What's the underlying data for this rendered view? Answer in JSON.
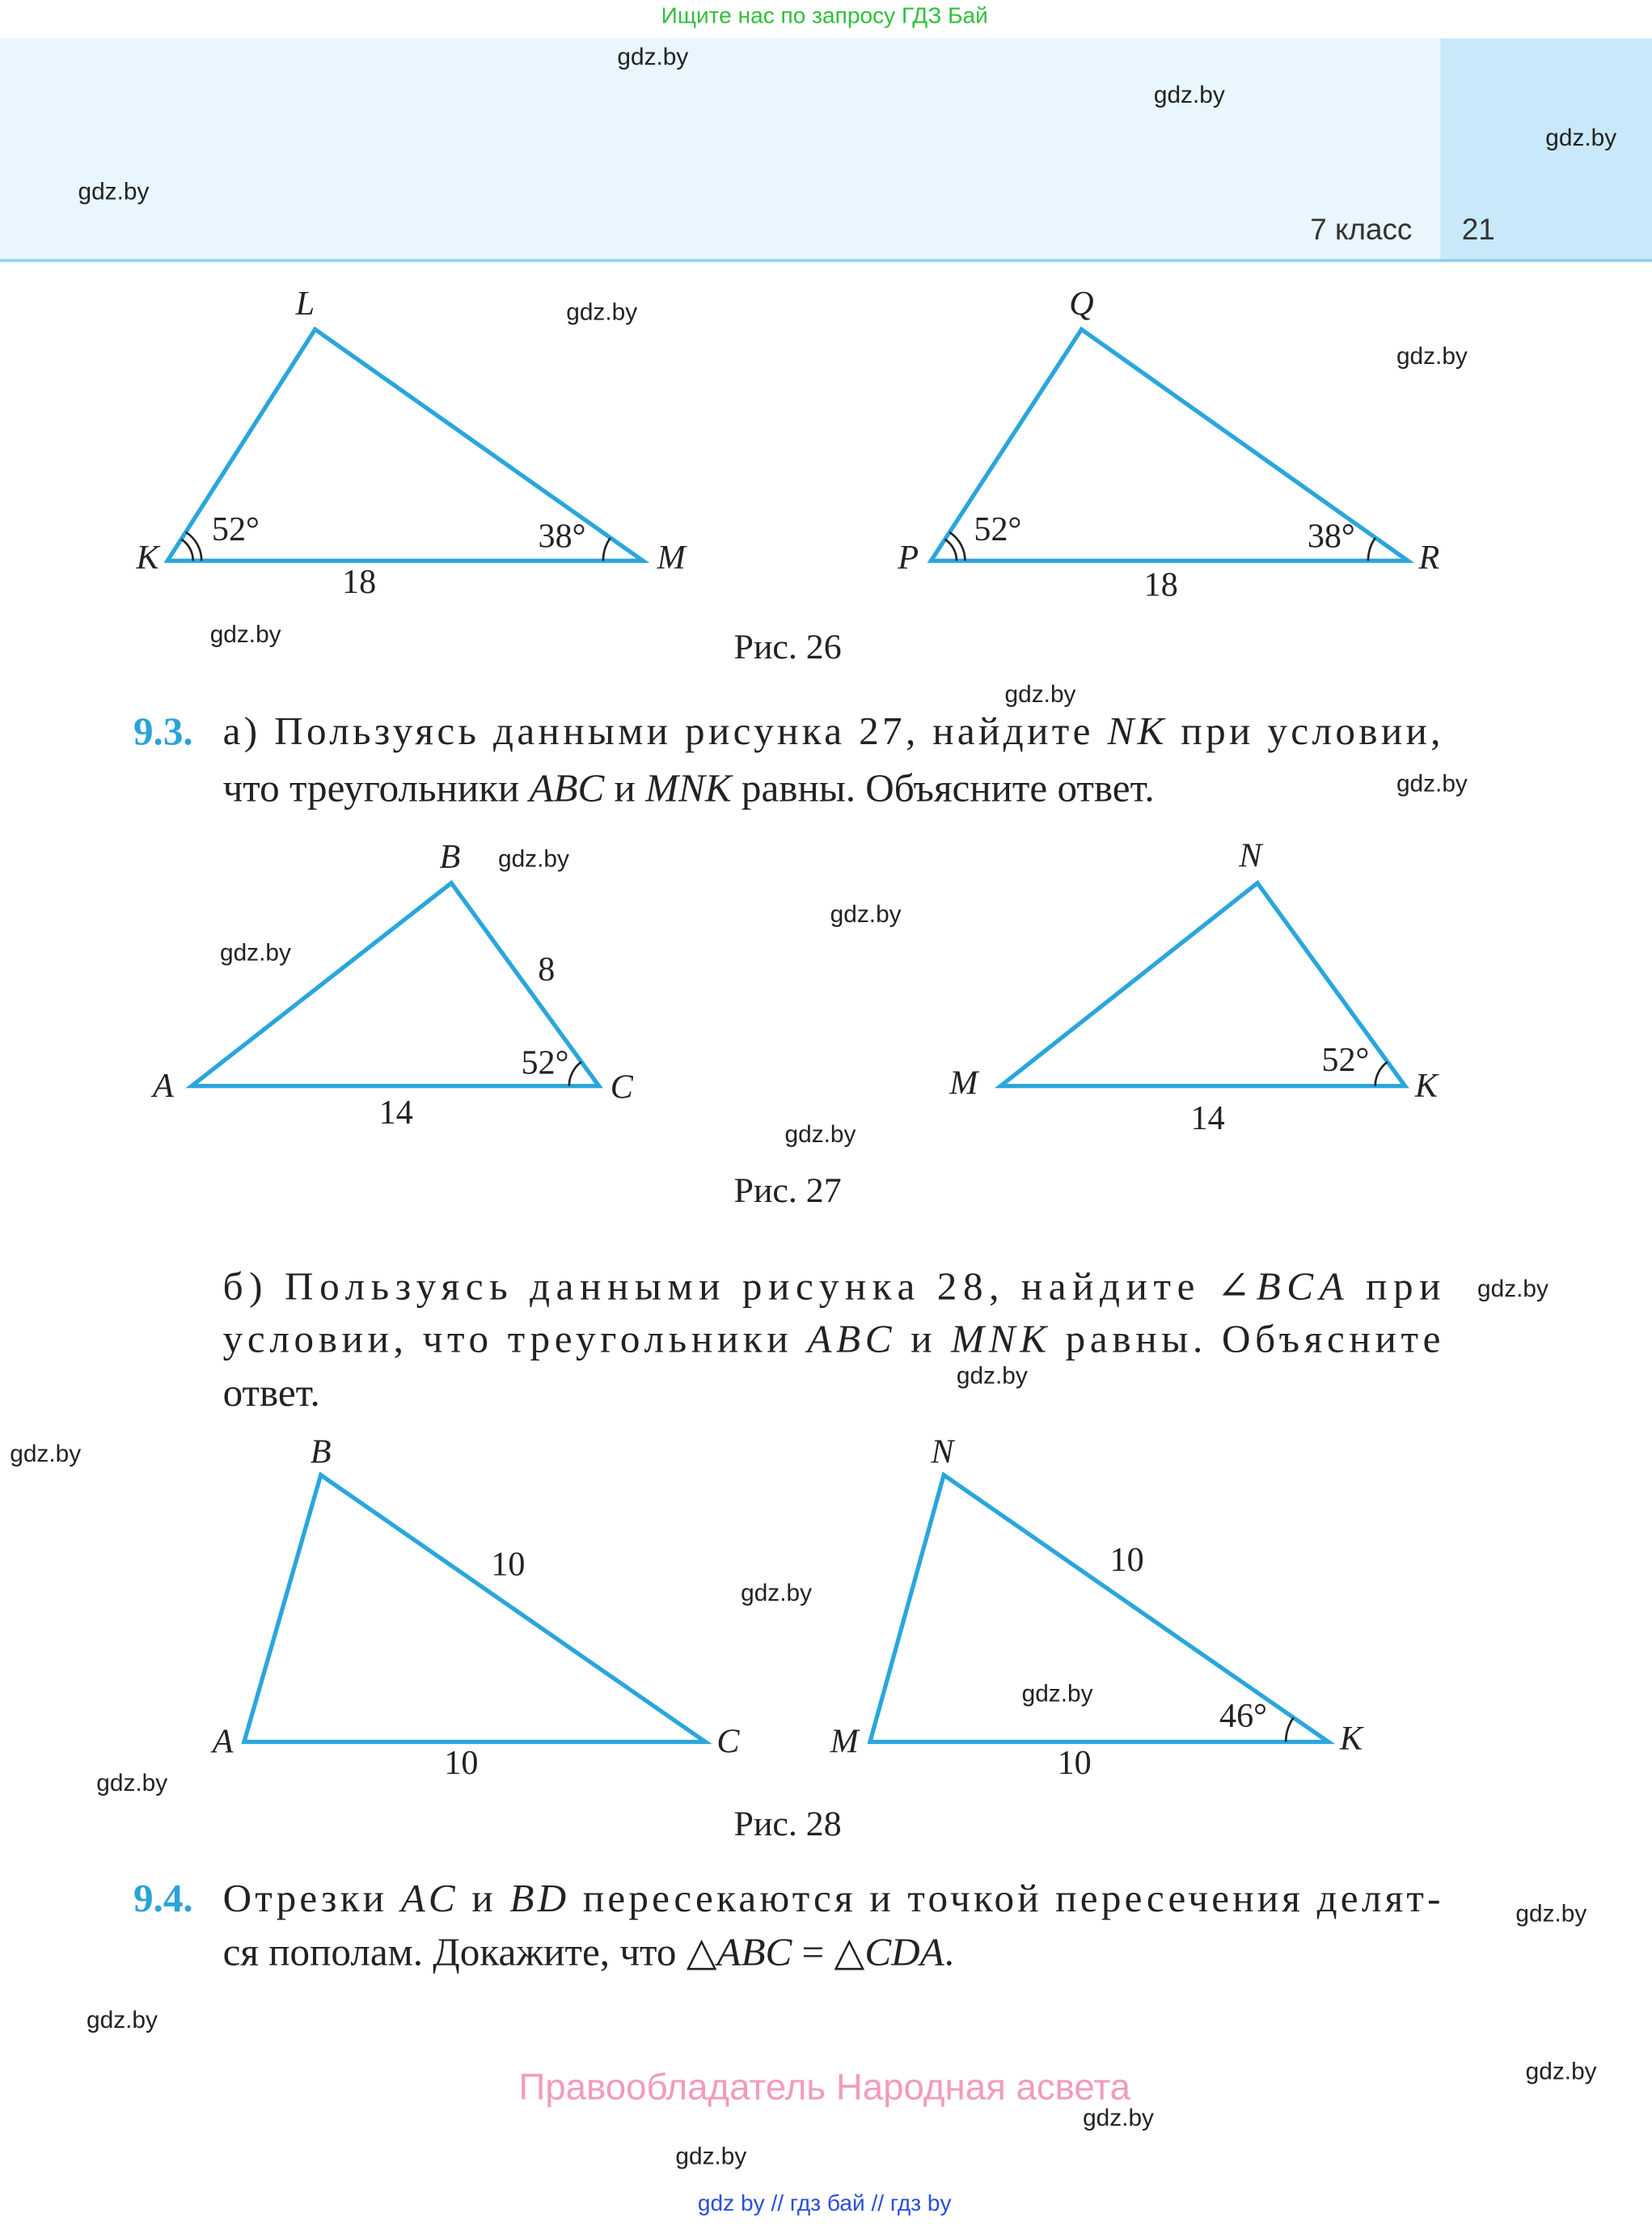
{
  "top_banner": "Ищите нас по запросу ГДЗ Бай",
  "header": {
    "grade": "7 класс",
    "page_number": "21"
  },
  "figures": [
    {
      "caption": "Рис. 26",
      "triangles": [
        {
          "vertices": [
            "K",
            "L",
            "M"
          ],
          "marks": [
            "52°",
            "38°",
            "18"
          ]
        },
        {
          "vertices": [
            "P",
            "Q",
            "R"
          ],
          "marks": [
            "52°",
            "38°",
            "18"
          ]
        }
      ]
    },
    {
      "caption": "Рис. 27",
      "triangles": [
        {
          "vertices": [
            "A",
            "B",
            "C"
          ],
          "marks": [
            "8",
            "52°",
            "14"
          ]
        },
        {
          "vertices": [
            "M",
            "N",
            "K"
          ],
          "marks": [
            "52°",
            "14"
          ]
        }
      ]
    },
    {
      "caption": "Рис. 28",
      "triangles": [
        {
          "vertices": [
            "A",
            "B",
            "C"
          ],
          "marks": [
            "10",
            "10"
          ]
        },
        {
          "vertices": [
            "M",
            "N",
            "K"
          ],
          "marks": [
            "10",
            "46°",
            "10"
          ]
        }
      ]
    }
  ],
  "problems": [
    {
      "number": "9.3.",
      "lines": [
        [
          "а) Пользуясь данными рисунка 27, найдите ",
          "NK",
          " при условии,"
        ],
        [
          "что треугольники ",
          "ABC",
          " и ",
          "MNK",
          " равны. Объясните ответ."
        ]
      ]
    },
    {
      "number": null,
      "lines": [
        [
          "б) Пользуясь данными рисунка 28, найдите ",
          "∠BCA",
          " при"
        ],
        [
          "условии, что треугольники ",
          "ABC",
          " и ",
          "MNK",
          " равны. Объясните"
        ],
        [
          "ответ."
        ]
      ]
    },
    {
      "number": "9.4.",
      "lines": [
        [
          "Отрезки ",
          "AC",
          " и ",
          "BD",
          " пересекаются и точкой пересечения делят-"
        ],
        [
          "ся пополам. Докажите, что △",
          "ABC",
          " = △",
          "CDA",
          "."
        ]
      ]
    }
  ],
  "copyright": "Правообладатель Народная асвета",
  "footer_links": "gdz by  //  гдз бай  //  гдз by",
  "watermarks": [
    "gdz.by",
    "gdz.by",
    "gdz.by",
    "gdz.by",
    "gdz.by",
    "gdz.by",
    "gdz.by",
    "gdz.by",
    "gdz.by",
    "gdz.by",
    "gdz.by",
    "gdz.by",
    "gdz.by",
    "gdz.by",
    "gdz.by",
    "gdz.by",
    "gdz.by",
    "gdz.by",
    "gdz.by",
    "gdz.by",
    "gdz.by",
    "gdz.by",
    "gdz.by",
    "gdz.by"
  ]
}
